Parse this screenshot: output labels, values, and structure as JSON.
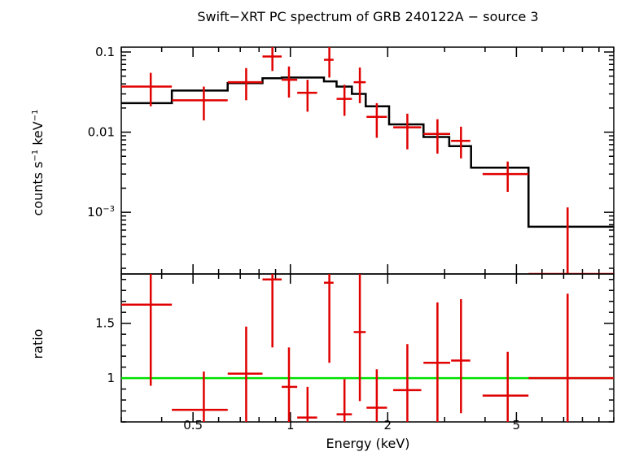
{
  "chart_data": {
    "type": "scatter",
    "title": "Swift−XRT PC spectrum of GRB 240122A − source 3",
    "xlabel": "Energy (keV)",
    "x_scale": "log",
    "xlim": [
      0.3,
      10
    ],
    "x_ticks": [
      {
        "value": 0.5,
        "label": "0.5"
      },
      {
        "value": 1,
        "label": "1"
      },
      {
        "value": 2,
        "label": "2"
      },
      {
        "value": 5,
        "label": "5"
      }
    ],
    "colors": {
      "data": "#e00000",
      "model": "#000000",
      "unity": "#00e000"
    },
    "top_panel": {
      "ylabel_main": "counts s",
      "ylabel_exp1": "−1",
      "ylabel_mid": " keV",
      "ylabel_exp2": "−1",
      "y_scale": "log",
      "ylim": [
        0.00017,
        0.115
      ],
      "y_ticks": [
        {
          "value": 0.1,
          "label": "0.1"
        },
        {
          "value": 0.01,
          "label": "0.01"
        },
        {
          "value": 0.001,
          "label_base": "10",
          "label_exp": "−3"
        }
      ],
      "data": [
        {
          "x": 0.37,
          "xlo": 0.3,
          "xhi": 0.43,
          "y": 0.037,
          "ylo": 0.021,
          "yhi": 0.055
        },
        {
          "x": 0.54,
          "xlo": 0.43,
          "xhi": 0.64,
          "y": 0.025,
          "ylo": 0.014,
          "yhi": 0.037
        },
        {
          "x": 0.73,
          "xlo": 0.64,
          "xhi": 0.82,
          "y": 0.042,
          "ylo": 0.025,
          "yhi": 0.063
        },
        {
          "x": 0.88,
          "xlo": 0.82,
          "xhi": 0.94,
          "y": 0.088,
          "ylo": 0.058,
          "yhi": 0.115
        },
        {
          "x": 0.99,
          "xlo": 0.94,
          "xhi": 1.05,
          "y": 0.045,
          "ylo": 0.027,
          "yhi": 0.066
        },
        {
          "x": 1.13,
          "xlo": 1.05,
          "xhi": 1.21,
          "y": 0.031,
          "ylo": 0.018,
          "yhi": 0.045
        },
        {
          "x": 1.32,
          "xlo": 1.27,
          "xhi": 1.36,
          "y": 0.08,
          "ylo": 0.048,
          "yhi": 0.115
        },
        {
          "x": 1.47,
          "xlo": 1.39,
          "xhi": 1.55,
          "y": 0.026,
          "ylo": 0.016,
          "yhi": 0.039
        },
        {
          "x": 1.64,
          "xlo": 1.57,
          "xhi": 1.71,
          "y": 0.042,
          "ylo": 0.023,
          "yhi": 0.064
        },
        {
          "x": 1.85,
          "xlo": 1.72,
          "xhi": 1.99,
          "y": 0.0155,
          "ylo": 0.0085,
          "yhi": 0.023
        },
        {
          "x": 2.3,
          "xlo": 2.08,
          "xhi": 2.54,
          "y": 0.0115,
          "ylo": 0.0061,
          "yhi": 0.017
        },
        {
          "x": 2.85,
          "xlo": 2.58,
          "xhi": 3.12,
          "y": 0.0095,
          "ylo": 0.0054,
          "yhi": 0.0145
        },
        {
          "x": 3.37,
          "xlo": 3.14,
          "xhi": 3.6,
          "y": 0.0078,
          "ylo": 0.0047,
          "yhi": 0.0117
        },
        {
          "x": 4.7,
          "xlo": 3.93,
          "xhi": 5.45,
          "y": 0.003,
          "ylo": 0.0018,
          "yhi": 0.0043
        },
        {
          "x": 7.2,
          "xlo": 5.45,
          "xhi": 10.0,
          "y": 0.00017,
          "ylo": 0.00017,
          "yhi": 0.00115
        }
      ],
      "model_steps": [
        {
          "xlo": 0.3,
          "xhi": 0.43,
          "y": 0.023
        },
        {
          "xlo": 0.43,
          "xhi": 0.64,
          "y": 0.033
        },
        {
          "xlo": 0.64,
          "xhi": 0.82,
          "y": 0.041
        },
        {
          "xlo": 0.82,
          "xhi": 0.94,
          "y": 0.047
        },
        {
          "xlo": 0.94,
          "xhi": 1.05,
          "y": 0.048
        },
        {
          "xlo": 1.05,
          "xhi": 1.27,
          "y": 0.048
        },
        {
          "xlo": 1.27,
          "xhi": 1.39,
          "y": 0.043
        },
        {
          "xlo": 1.39,
          "xhi": 1.55,
          "y": 0.037
        },
        {
          "xlo": 1.55,
          "xhi": 1.71,
          "y": 0.03
        },
        {
          "xlo": 1.71,
          "xhi": 2.02,
          "y": 0.021
        },
        {
          "xlo": 2.02,
          "xhi": 2.58,
          "y": 0.0125
        },
        {
          "xlo": 2.58,
          "xhi": 3.1,
          "y": 0.0087
        },
        {
          "xlo": 3.1,
          "xhi": 3.62,
          "y": 0.0067
        },
        {
          "xlo": 3.62,
          "xhi": 5.45,
          "y": 0.0036
        },
        {
          "xlo": 5.45,
          "xhi": 10.0,
          "y": 0.00066
        }
      ]
    },
    "bottom_panel": {
      "ylabel": "ratio",
      "y_scale": "linear",
      "ylim": [
        0.6,
        1.95
      ],
      "y_ticks": [
        {
          "value": 1,
          "label": "1"
        },
        {
          "value": 1.5,
          "label": "1.5"
        }
      ],
      "reference_line": 1.0,
      "data": [
        {
          "x": 0.37,
          "xlo": 0.3,
          "xhi": 0.43,
          "y": 1.67,
          "ylo": 0.93,
          "yhi": 1.95
        },
        {
          "x": 0.54,
          "xlo": 0.43,
          "xhi": 0.64,
          "y": 0.71,
          "ylo": 0.6,
          "yhi": 1.06
        },
        {
          "x": 0.73,
          "xlo": 0.64,
          "xhi": 0.82,
          "y": 1.04,
          "ylo": 0.6,
          "yhi": 1.47
        },
        {
          "x": 0.88,
          "xlo": 0.82,
          "xhi": 0.94,
          "y": 1.9,
          "ylo": 1.28,
          "yhi": 1.95
        },
        {
          "x": 0.99,
          "xlo": 0.94,
          "xhi": 1.05,
          "y": 0.92,
          "ylo": 0.6,
          "yhi": 1.28
        },
        {
          "x": 1.13,
          "xlo": 1.05,
          "xhi": 1.21,
          "y": 0.64,
          "ylo": 0.6,
          "yhi": 0.92
        },
        {
          "x": 1.32,
          "xlo": 1.27,
          "xhi": 1.36,
          "y": 1.87,
          "ylo": 1.14,
          "yhi": 1.95
        },
        {
          "x": 1.47,
          "xlo": 1.39,
          "xhi": 1.55,
          "y": 0.67,
          "ylo": 0.6,
          "yhi": 0.99
        },
        {
          "x": 1.64,
          "xlo": 1.57,
          "xhi": 1.71,
          "y": 1.42,
          "ylo": 0.79,
          "yhi": 1.95
        },
        {
          "x": 1.85,
          "xlo": 1.72,
          "xhi": 1.99,
          "y": 0.73,
          "ylo": 0.6,
          "yhi": 1.08
        },
        {
          "x": 2.3,
          "xlo": 2.08,
          "xhi": 2.54,
          "y": 0.89,
          "ylo": 0.6,
          "yhi": 1.31
        },
        {
          "x": 2.85,
          "xlo": 2.58,
          "xhi": 3.12,
          "y": 1.14,
          "ylo": 0.6,
          "yhi": 1.69
        },
        {
          "x": 3.37,
          "xlo": 3.14,
          "xhi": 3.6,
          "y": 1.16,
          "ylo": 0.68,
          "yhi": 1.72
        },
        {
          "x": 4.7,
          "xlo": 3.93,
          "xhi": 5.45,
          "y": 0.84,
          "ylo": 0.6,
          "yhi": 1.24
        },
        {
          "x": 7.2,
          "xlo": 5.45,
          "xhi": 10.0,
          "y": 1.0,
          "ylo": 0.6,
          "yhi": 1.77
        }
      ]
    }
  }
}
